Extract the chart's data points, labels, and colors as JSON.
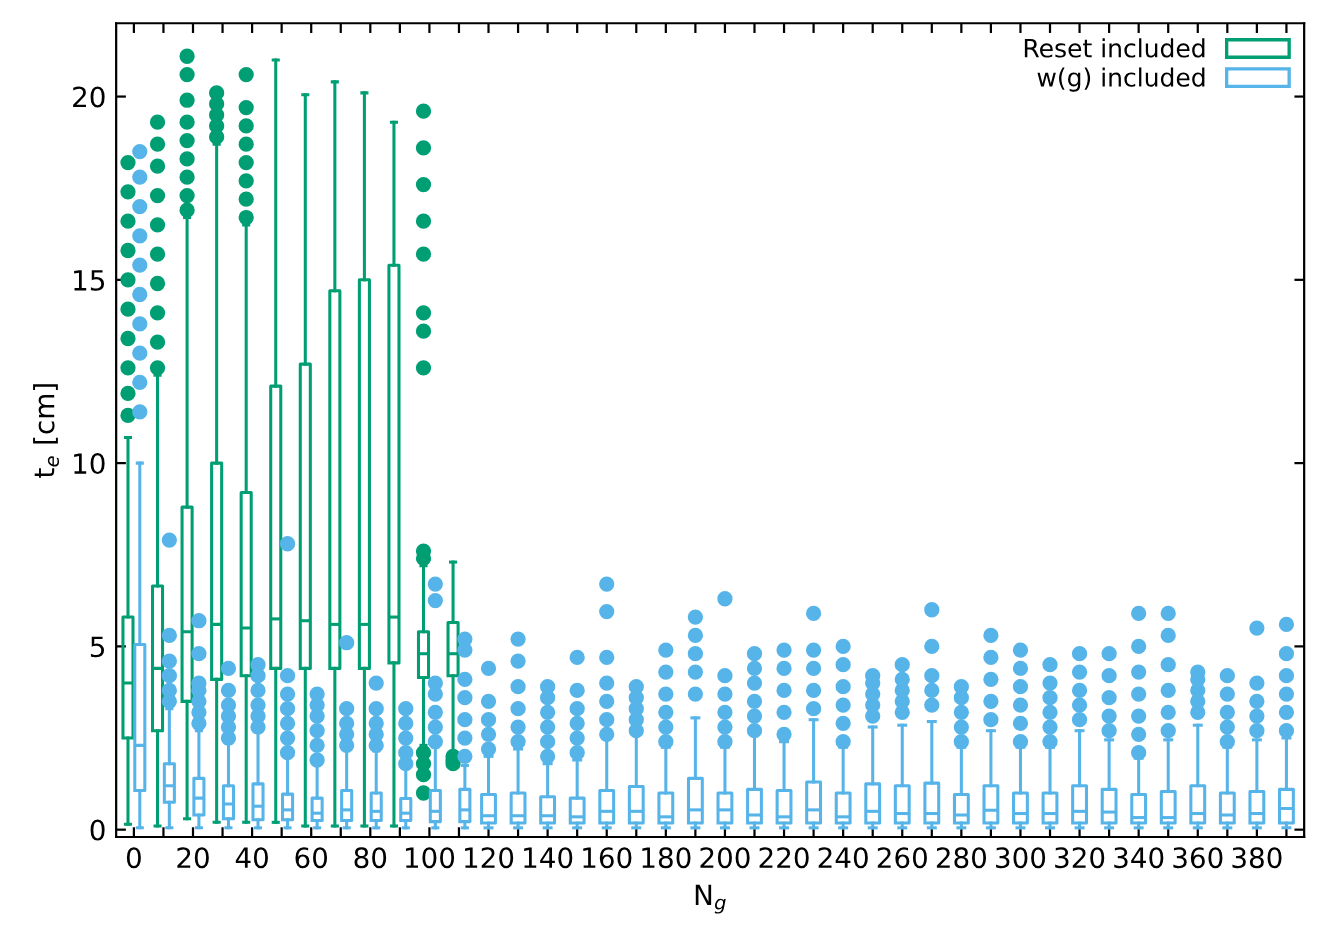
{
  "chart_data": {
    "type": "box",
    "xlabel": "N$_{g}$",
    "ylabel": "t$_{e}$ [cm]",
    "categories": [
      "0",
      null,
      "20",
      null,
      "40",
      null,
      "60",
      null,
      "80",
      null,
      "100",
      null,
      "120",
      null,
      "140",
      null,
      "160",
      null,
      "180",
      null,
      "200",
      null,
      "220",
      null,
      "240",
      null,
      "260",
      null,
      "280",
      null,
      "300",
      null,
      "320",
      null,
      "340",
      null,
      "360",
      null,
      "380",
      null
    ],
    "ylim": [
      -0.2,
      22
    ],
    "yticks": [
      0,
      5,
      10,
      15,
      20
    ],
    "grid": false,
    "legend": "top right",
    "marker": "circle",
    "series": [
      {
        "name": "Reset included",
        "color": "#009e73",
        "boxes": [
          {
            "low": 0.15,
            "q1": 2.5,
            "median": 4.0,
            "q3": 5.8,
            "high": 10.7,
            "outliers": [
              11.3,
              11.9,
              12.6,
              13.4,
              14.2,
              15.0,
              15.8,
              16.6,
              17.4,
              18.2
            ]
          },
          {
            "low": 0.1,
            "q1": 2.7,
            "median": 4.4,
            "q3": 6.65,
            "high": 12.4,
            "outliers": [
              12.6,
              13.3,
              14.1,
              14.9,
              15.7,
              16.5,
              17.3,
              18.1,
              18.7,
              19.3
            ]
          },
          {
            "low": 0.3,
            "q1": 3.5,
            "median": 5.4,
            "q3": 8.8,
            "high": 16.7,
            "outliers": [
              16.9,
              17.3,
              17.8,
              18.3,
              18.8,
              19.3,
              19.9,
              20.6,
              21.1
            ]
          },
          {
            "low": 0.2,
            "q1": 4.1,
            "median": 5.6,
            "q3": 10.0,
            "high": 18.7,
            "outliers": [
              18.9,
              19.2,
              19.5,
              19.8,
              20.1
            ]
          },
          {
            "low": 0.2,
            "q1": 4.2,
            "median": 5.5,
            "q3": 9.2,
            "high": 16.5,
            "outliers": [
              16.7,
              17.2,
              17.7,
              18.2,
              18.7,
              19.2,
              19.7,
              20.6
            ]
          },
          {
            "low": 0.2,
            "q1": 4.4,
            "median": 5.75,
            "q3": 12.1,
            "high": 21.0
          },
          {
            "low": 0.1,
            "q1": 4.4,
            "median": 5.7,
            "q3": 12.7,
            "high": 20.05
          },
          {
            "low": 0.1,
            "q1": 4.4,
            "median": 5.6,
            "q3": 14.7,
            "high": 20.4
          },
          {
            "low": 0.1,
            "q1": 4.4,
            "median": 5.6,
            "q3": 15.0,
            "high": 20.1
          },
          {
            "low": 0.1,
            "q1": 4.55,
            "median": 5.8,
            "q3": 15.4,
            "high": 19.3
          },
          {
            "low": 2.3,
            "q1": 4.15,
            "median": 4.8,
            "q3": 5.4,
            "high": 7.2,
            "outliers": [
              7.4,
              7.6,
              12.6,
              13.6,
              14.1,
              15.7,
              16.6,
              17.6,
              18.6,
              19.6,
              2.1,
              1.8,
              1.5,
              1.0
            ]
          },
          {
            "low": 2.05,
            "q1": 4.2,
            "median": 4.8,
            "q3": 5.65,
            "high": 7.3,
            "outliers": [
              2.0,
              1.9,
              1.8
            ]
          },
          null,
          null,
          null,
          null,
          null,
          null,
          null,
          null,
          null,
          null,
          null,
          null,
          null,
          null,
          null,
          null,
          null,
          null,
          null,
          null,
          null,
          null,
          null,
          null,
          null,
          null,
          null,
          null
        ]
      },
      {
        "name": "w(g) included",
        "color": "#56b4e9",
        "boxes": [
          {
            "low": 0.05,
            "q1": 1.07,
            "median": 2.3,
            "q3": 5.05,
            "high": 10.0,
            "outliers": [
              11.4,
              12.2,
              13.0,
              13.8,
              14.6,
              15.4,
              16.2,
              17.0,
              17.8,
              18.5
            ]
          },
          {
            "low": 0.05,
            "q1": 0.75,
            "median": 1.2,
            "q3": 1.8,
            "high": 3.3,
            "outliers": [
              3.5,
              3.8,
              4.2,
              4.6,
              5.3,
              7.9
            ]
          },
          {
            "low": 0.05,
            "q1": 0.4,
            "median": 0.86,
            "q3": 1.4,
            "high": 2.7,
            "outliers": [
              2.9,
              3.2,
              3.5,
              3.8,
              4.0,
              4.8,
              5.7
            ]
          },
          {
            "low": 0.05,
            "q1": 0.3,
            "median": 0.7,
            "q3": 1.2,
            "high": 2.36,
            "outliers": [
              2.5,
              2.8,
              3.1,
              3.4,
              3.8,
              4.4
            ]
          },
          {
            "low": 0.05,
            "q1": 0.27,
            "median": 0.64,
            "q3": 1.25,
            "high": 2.7,
            "outliers": [
              2.8,
              3.1,
              3.4,
              3.8,
              4.2,
              4.5
            ]
          },
          {
            "low": 0.05,
            "q1": 0.27,
            "median": 0.54,
            "q3": 0.97,
            "high": 2.0,
            "outliers": [
              2.1,
              2.5,
              2.9,
              3.3,
              3.7,
              4.2,
              7.8
            ]
          },
          {
            "low": 0.05,
            "q1": 0.25,
            "median": 0.45,
            "q3": 0.86,
            "high": 1.8,
            "outliers": [
              1.9,
              2.3,
              2.7,
              3.1,
              3.4,
              3.7
            ]
          },
          {
            "low": 0.05,
            "q1": 0.25,
            "median": 0.54,
            "q3": 1.07,
            "high": 2.2,
            "outliers": [
              2.3,
              2.6,
              2.9,
              3.3,
              5.1
            ]
          },
          {
            "low": 0.05,
            "q1": 0.25,
            "median": 0.5,
            "q3": 1.0,
            "high": 2.15,
            "outliers": [
              2.3,
              2.6,
              2.9,
              3.3,
              4.0
            ]
          },
          {
            "low": 0.05,
            "q1": 0.25,
            "median": 0.45,
            "q3": 0.85,
            "high": 1.7,
            "outliers": [
              1.8,
              2.1,
              2.5,
              2.9,
              3.3
            ]
          },
          {
            "low": 0.05,
            "q1": 0.22,
            "median": 0.5,
            "q3": 1.07,
            "high": 2.25,
            "outliers": [
              2.4,
              2.8,
              3.2,
              3.7,
              4.0,
              6.25,
              6.7
            ]
          },
          {
            "low": 0.05,
            "q1": 0.22,
            "median": 0.54,
            "q3": 1.1,
            "high": 1.75,
            "outliers": [
              2.0,
              2.5,
              3.0,
              3.6,
              4.1,
              4.9,
              5.2
            ]
          },
          {
            "low": 0.05,
            "q1": 0.18,
            "median": 0.38,
            "q3": 0.96,
            "high": 2.0,
            "outliers": [
              2.2,
              2.6,
              3.0,
              3.5,
              4.4
            ]
          },
          {
            "low": 0.05,
            "q1": 0.18,
            "median": 0.38,
            "q3": 1.0,
            "high": 2.2,
            "outliers": [
              2.4,
              2.8,
              3.3,
              3.9,
              4.6,
              5.2
            ]
          },
          {
            "low": 0.05,
            "q1": 0.18,
            "median": 0.38,
            "q3": 0.9,
            "high": 1.8,
            "outliers": [
              2.0,
              2.4,
              2.8,
              3.2,
              3.6,
              3.9
            ]
          },
          {
            "low": 0.05,
            "q1": 0.18,
            "median": 0.35,
            "q3": 0.86,
            "high": 1.9,
            "outliers": [
              2.1,
              2.5,
              2.9,
              3.3,
              3.8,
              4.7
            ]
          },
          {
            "low": 0.05,
            "q1": 0.18,
            "median": 0.5,
            "q3": 1.07,
            "high": 2.5,
            "outliers": [
              2.6,
              3.0,
              3.5,
              4.0,
              4.7,
              5.95,
              6.7
            ]
          },
          {
            "low": 0.05,
            "q1": 0.18,
            "median": 0.5,
            "q3": 1.18,
            "high": 2.6,
            "outliers": [
              2.7,
              3.0,
              3.3,
              3.6,
              3.9
            ]
          },
          {
            "low": 0.05,
            "q1": 0.18,
            "median": 0.35,
            "q3": 1.0,
            "high": 2.25,
            "outliers": [
              2.4,
              2.8,
              3.2,
              3.7,
              4.3,
              4.9
            ]
          },
          {
            "low": 0.05,
            "q1": 0.18,
            "median": 0.54,
            "q3": 1.4,
            "high": 3.05,
            "outliers": [
              3.7,
              4.3,
              4.8,
              5.3,
              5.8
            ]
          },
          {
            "low": 0.05,
            "q1": 0.18,
            "median": 0.54,
            "q3": 1.0,
            "high": 2.25,
            "outliers": [
              2.4,
              2.8,
              3.2,
              3.7,
              4.2,
              6.3
            ]
          },
          {
            "low": 0.05,
            "q1": 0.18,
            "median": 0.4,
            "q3": 1.1,
            "high": 2.6,
            "outliers": [
              2.7,
              3.1,
              3.5,
              4.0,
              4.4,
              4.8
            ]
          },
          {
            "low": 0.05,
            "q1": 0.18,
            "median": 0.35,
            "q3": 1.07,
            "high": 2.4,
            "outliers": [
              2.6,
              3.2,
              3.8,
              4.4,
              4.9
            ]
          },
          {
            "low": 0.05,
            "q1": 0.18,
            "median": 0.54,
            "q3": 1.3,
            "high": 3.0,
            "outliers": [
              3.3,
              3.8,
              4.4,
              4.9,
              5.9
            ]
          },
          {
            "low": 0.05,
            "q1": 0.18,
            "median": 0.35,
            "q3": 1.0,
            "high": 2.25,
            "outliers": [
              2.4,
              2.9,
              3.4,
              3.9,
              4.5,
              5.0
            ]
          },
          {
            "low": 0.05,
            "q1": 0.18,
            "median": 0.5,
            "q3": 1.25,
            "high": 2.8,
            "outliers": [
              3.1,
              3.4,
              3.7,
              4.0,
              4.2
            ]
          },
          {
            "low": 0.05,
            "q1": 0.18,
            "median": 0.44,
            "q3": 1.2,
            "high": 2.85,
            "outliers": [
              3.2,
              3.5,
              3.8,
              4.1,
              4.5
            ]
          },
          {
            "low": 0.05,
            "q1": 0.18,
            "median": 0.44,
            "q3": 1.27,
            "high": 2.95,
            "outliers": [
              3.4,
              3.8,
              4.2,
              5.0,
              6.0
            ]
          },
          {
            "low": 0.05,
            "q1": 0.18,
            "median": 0.4,
            "q3": 0.96,
            "high": 2.25,
            "outliers": [
              2.4,
              2.8,
              3.2,
              3.6,
              3.9
            ]
          },
          {
            "low": 0.05,
            "q1": 0.18,
            "median": 0.53,
            "q3": 1.2,
            "high": 2.7,
            "outliers": [
              3.0,
              3.5,
              4.1,
              4.7,
              5.3
            ]
          },
          {
            "low": 0.05,
            "q1": 0.18,
            "median": 0.44,
            "q3": 1.0,
            "high": 2.25,
            "outliers": [
              2.4,
              2.9,
              3.4,
              3.9,
              4.4,
              4.9
            ]
          },
          {
            "low": 0.05,
            "q1": 0.18,
            "median": 0.44,
            "q3": 1.0,
            "high": 2.25,
            "outliers": [
              2.4,
              2.8,
              3.2,
              3.6,
              4.0,
              4.5
            ]
          },
          {
            "low": 0.05,
            "q1": 0.18,
            "median": 0.5,
            "q3": 1.2,
            "high": 2.7,
            "outliers": [
              3.0,
              3.4,
              3.8,
              4.3,
              4.8
            ]
          },
          {
            "low": 0.05,
            "q1": 0.18,
            "median": 0.48,
            "q3": 1.1,
            "high": 2.45,
            "outliers": [
              2.7,
              3.1,
              3.6,
              4.2,
              4.8
            ]
          },
          {
            "low": 0.05,
            "q1": 0.18,
            "median": 0.33,
            "q3": 0.96,
            "high": 1.95,
            "outliers": [
              2.1,
              2.6,
              3.1,
              3.7,
              4.3,
              5.0,
              5.9
            ]
          },
          {
            "low": 0.05,
            "q1": 0.18,
            "median": 0.33,
            "q3": 1.04,
            "high": 2.45,
            "outliers": [
              2.7,
              3.2,
              3.8,
              4.5,
              5.3,
              5.9
            ]
          },
          {
            "low": 0.05,
            "q1": 0.18,
            "median": 0.44,
            "q3": 1.2,
            "high": 2.85,
            "outliers": [
              3.2,
              3.5,
              3.8,
              4.1,
              4.3
            ]
          },
          {
            "low": 0.05,
            "q1": 0.18,
            "median": 0.4,
            "q3": 1.0,
            "high": 2.25,
            "outliers": [
              2.4,
              2.8,
              3.2,
              3.7,
              4.2
            ]
          },
          {
            "low": 0.05,
            "q1": 0.18,
            "median": 0.44,
            "q3": 1.04,
            "high": 2.45,
            "outliers": [
              2.7,
              3.1,
              3.5,
              4.0,
              5.5
            ]
          },
          {
            "low": 0.05,
            "q1": 0.18,
            "median": 0.58,
            "q3": 1.1,
            "high": 2.5,
            "outliers": [
              2.7,
              3.2,
              3.7,
              4.2,
              4.8,
              5.6
            ]
          }
        ]
      }
    ]
  }
}
